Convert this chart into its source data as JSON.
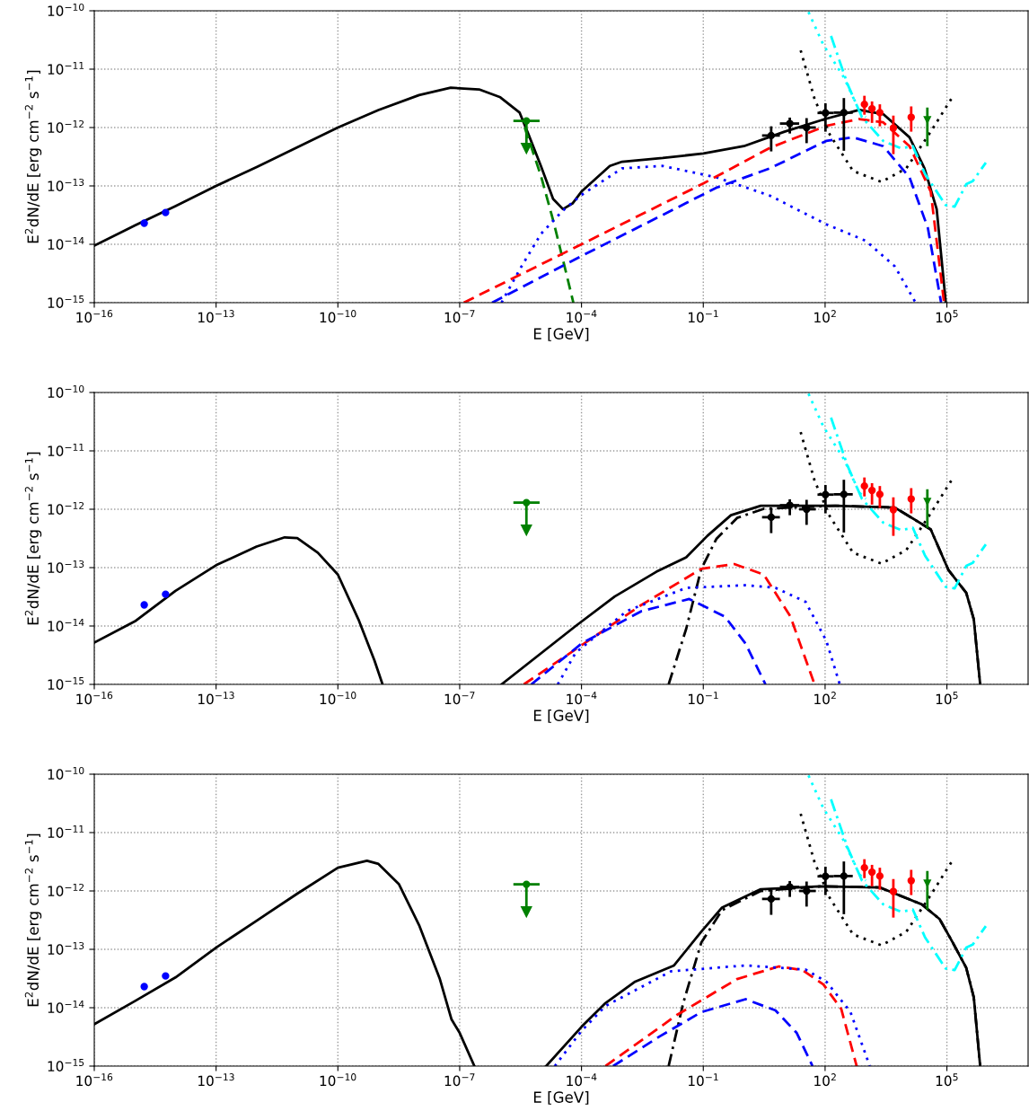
{
  "chart_data": [
    {
      "type": "line",
      "xlabel": "E [GeV]",
      "ylabel": "E$^{2}$dN/dE [erg cm$^{−2}$ s$^{−1}$]",
      "log": "xy",
      "grid": true,
      "xlim": [
        1e-16,
        10000000.0
      ],
      "ylim": [
        1e-15,
        1e-10
      ],
      "xticks": [
        {
          "value": 1e-16,
          "label": "10$^{−16}$"
        },
        {
          "value": 1e-13,
          "label": "10$^{−13}$"
        },
        {
          "value": 1e-10,
          "label": "10$^{−10}$"
        },
        {
          "value": 1e-07,
          "label": "10$^{−7}$"
        },
        {
          "value": 0.0001,
          "label": "10$^{−4}$"
        },
        {
          "value": 0.1,
          "label": "10$^{−1}$"
        },
        {
          "value": 100.0,
          "label": "10$^{2}$"
        },
        {
          "value": 100000.0,
          "label": "10$^{5}$"
        }
      ],
      "yticks": [
        {
          "value": 1e-15,
          "label": "10$^{−15}$"
        },
        {
          "value": 1e-14,
          "label": "10$^{−14}$"
        },
        {
          "value": 1e-13,
          "label": "10$^{−13}$"
        },
        {
          "value": 1e-12,
          "label": "10$^{−12}$"
        },
        {
          "value": 1e-11,
          "label": "10$^{−11}$"
        },
        {
          "value": 1e-10,
          "label": "10$^{−10}$"
        }
      ],
      "series": [
        {
          "type": "line",
          "color": "#000000",
          "line_style": "solid",
          "x": [
            1e-16,
            1e-15,
            1e-14,
            1e-13,
            1e-12,
            1e-11,
            1e-10,
            1e-09,
            1e-08,
            6e-08,
            3e-07,
            1e-06,
            3e-06,
            5e-06,
            1e-05,
            2e-05,
            3.5e-05,
            6e-05,
            0.0001,
            0.0005,
            0.001,
            0.01,
            0.1,
            1,
            10,
            100,
            690,
            2700,
            12000.0,
            28000.0,
            56000.0,
            94000.0
          ],
          "values": [
            9.5e-15,
            2.1e-14,
            4.5e-14,
            1e-13,
            2.1e-13,
            4.6e-13,
            1e-12,
            2e-12,
            3.6e-12,
            4.8e-12,
            4.5e-12,
            3.3e-12,
            1.8e-12,
            7.5e-13,
            2.2e-13,
            6e-14,
            4e-14,
            5e-14,
            8e-14,
            2.2e-13,
            2.6e-13,
            3e-13,
            3.6e-13,
            4.8e-13,
            8.5e-13,
            1.4e-12,
            2e-12,
            1.7e-12,
            6.8e-13,
            2e-13,
            4e-14,
            1e-15
          ]
        },
        {
          "type": "line",
          "color": "#008000",
          "line_style": "dashed",
          "x": [
            4e-06,
            1e-05,
            2e-05,
            4e-05,
            6.3e-05
          ],
          "values": [
            1e-12,
            1.5e-13,
            2.6e-14,
            3.7e-15,
            1e-15
          ]
        },
        {
          "type": "line",
          "color": "#0000ff",
          "line_style": "dotted",
          "x": [
            1.07e-06,
            3e-06,
            1e-05,
            3.5e-05,
            0.0001,
            0.001,
            0.01,
            0.21,
            4.4,
            107,
            1000,
            5200,
            17000
          ],
          "values": [
            1e-15,
            3.7e-15,
            1.5e-14,
            3.8e-14,
            7e-14,
            2e-13,
            2.2e-13,
            1.4e-13,
            6.8e-14,
            2.2e-14,
            1.15e-14,
            4.2e-15,
            1e-15
          ]
        },
        {
          "type": "line",
          "color": "#ff0000",
          "line_style": "dashed",
          "x": [
            1.26e-07,
            0.0001,
            0.1,
            4.4,
            107,
            690,
            2700,
            12000.0,
            40000.0,
            85000.0
          ],
          "values": [
            1e-15,
            1e-14,
            1.1e-13,
            4.5e-13,
            1.07e-12,
            1.4e-12,
            1.23e-12,
            4.8e-13,
            8e-14,
            1e-15
          ]
        },
        {
          "type": "line",
          "color": "#0000ff",
          "line_style": "dashed",
          "x": [
            6.3e-07,
            0.0001,
            0.21,
            4.4,
            107,
            490,
            2700,
            12000.0,
            34000.0,
            72000.0
          ],
          "values": [
            1e-15,
            6.3e-15,
            9.3e-14,
            2e-13,
            5.9e-13,
            6.8e-13,
            4.8e-13,
            1.4e-13,
            1.9e-14,
            1e-15
          ]
        },
        {
          "type": "line",
          "color": "#000000",
          "line_style": "dotted",
          "x": [
            25,
            55,
            130,
            490,
            2450,
            10000.0,
            40000.0,
            140000.0
          ],
          "values": [
            2.1e-11,
            3.1e-12,
            7.6e-13,
            1.8e-13,
            1.17e-13,
            2e-13,
            8.5e-13,
            3.4e-12
          ]
        },
        {
          "type": "line",
          "color": "#00ffff",
          "line_style": "dotted",
          "x": [
            39,
            91,
            295,
            690,
            1000
          ],
          "values": [
            9.5e-11,
            2.6e-11,
            7.1e-12,
            1.95e-12,
            1.5e-12
          ]
        },
        {
          "type": "line",
          "color": "#00ffff",
          "line_style": "dashdot",
          "x": [
            140,
            355,
            810,
            2700,
            7400,
            14500.0,
            29000.0,
            93000.0,
            155000.0,
            300000.0,
            430000.0,
            910000.0
          ],
          "values": [
            3.7e-11,
            5.6e-12,
            1.5e-12,
            5.9e-13,
            4.4e-13,
            4.8e-13,
            1.6e-13,
            4.7e-14,
            4.4e-14,
            1.07e-13,
            1.2e-13,
            2.5e-13
          ]
        },
        {
          "type": "scatter",
          "color": "#0000ff",
          "marker": "circle",
          "x": [
            1.7e-15,
            5.7e-15
          ],
          "values": [
            2.3e-14,
            3.5e-14
          ],
          "errors": [
            null,
            [
              3.2e-14,
              3.9e-14
            ]
          ]
        },
        {
          "type": "scatter",
          "color": "#008000",
          "marker": "circle",
          "x": [
            4.4e-06
          ],
          "values": [
            1.3e-12
          ],
          "xerrors": [
            [
              2.1e-06,
              9.3e-06
            ]
          ],
          "errors": [
            [
              4.4e-13,
              1.3e-12
            ]
          ]
        },
        {
          "type": "scatter",
          "color": "#000000",
          "marker": "circle",
          "x": [
            4.7,
            13.5,
            35,
            102,
            290
          ],
          "values": [
            7.3e-13,
            1.17e-12,
            1e-12,
            1.78e-12,
            1.8e-12
          ],
          "errors": [
            [
              3.9e-13,
              1.05e-12
            ],
            [
              7.9e-13,
              1.48e-12
            ],
            [
              5.4e-13,
              1.45e-12
            ],
            [
              8.5e-13,
              2.6e-12
            ],
            [
              4e-13,
              3.2e-12
            ]
          ],
          "xerrors": [
            [
              2.8,
              7.7
            ],
            [
              7.7,
              23
            ],
            [
              23,
              59
            ],
            [
              65,
              162
            ],
            [
              162,
              480
            ]
          ]
        },
        {
          "type": "scatter",
          "color": "#ff0000",
          "marker": "circle",
          "x": [
            930,
            1430,
            2230,
            4800,
            13200
          ],
          "values": [
            2.5e-12,
            2.1e-12,
            1.8e-12,
            9.8e-13,
            1.5e-12
          ],
          "errors": [
            [
              1.66e-12,
              3.5e-12
            ],
            [
              1.2e-12,
              2.8e-12
            ],
            [
              1.05e-12,
              2.5e-12
            ],
            [
              3.5e-13,
              1.6e-12
            ],
            [
              8.5e-13,
              2.3e-12
            ]
          ]
        },
        {
          "type": "scatter",
          "color": "#008000",
          "marker": "triangle",
          "x": [
            33000
          ],
          "values": [
            1.35e-12
          ],
          "errors": [
            [
              4.8e-13,
              2.2e-12
            ]
          ]
        }
      ]
    },
    {
      "type": "line",
      "xlabel": "E [GeV]",
      "ylabel": "E$^{2}$dN/dE [erg cm$^{−2}$ s$^{−1}$]",
      "log": "xy",
      "grid": true,
      "xlim": [
        1e-16,
        10000000.0
      ],
      "ylim": [
        1e-15,
        1e-10
      ],
      "xticks": [
        {
          "value": 1e-16,
          "label": "10$^{−16}$"
        },
        {
          "value": 1e-13,
          "label": "10$^{−13}$"
        },
        {
          "value": 1e-10,
          "label": "10$^{−10}$"
        },
        {
          "value": 1e-07,
          "label": "10$^{−7}$"
        },
        {
          "value": 0.0001,
          "label": "10$^{−4}$"
        },
        {
          "value": 0.1,
          "label": "10$^{−1}$"
        },
        {
          "value": 100.0,
          "label": "10$^{2}$"
        },
        {
          "value": 100000.0,
          "label": "10$^{5}$"
        }
      ],
      "yticks": [
        {
          "value": 1e-15,
          "label": "10$^{−15}$"
        },
        {
          "value": 1e-14,
          "label": "10$^{−14}$"
        },
        {
          "value": 1e-13,
          "label": "10$^{−13}$"
        },
        {
          "value": 1e-12,
          "label": "10$^{−12}$"
        },
        {
          "value": 1e-11,
          "label": "10$^{−11}$"
        },
        {
          "value": 1e-10,
          "label": "10$^{−10}$"
        }
      ],
      "series": [
        {
          "type": "line",
          "color": "#000000",
          "line_style": "solid",
          "x": [
            1e-16,
            1e-15,
            1e-14,
            1e-13,
            1e-12,
            4.9e-12,
            1e-11,
            3.2e-11,
            1e-10,
            3.2e-10,
            7.9e-10,
            1.26e-09
          ],
          "values": [
            5.2e-15,
            1.2e-14,
            4e-14,
            1.1e-13,
            2.3e-13,
            3.3e-13,
            3.2e-13,
            1.8e-13,
            7.6e-14,
            1.3e-14,
            2.6e-15,
            1e-15
          ]
        },
        {
          "type": "line",
          "color": "#000000",
          "line_style": "solid",
          "x": [
            1.07e-06,
            7.2e-05,
            0.00066,
            0.007,
            0.038,
            0.126,
            0.48,
            2.6,
            180,
            5200,
            40000.0,
            110000.0,
            300000.0,
            460000.0,
            660000.0
          ],
          "values": [
            1e-15,
            1e-14,
            3.2e-14,
            8.5e-14,
            1.5e-13,
            3.5e-13,
            7.9e-13,
            1.15e-12,
            1.15e-12,
            1.07e-12,
            4.5e-13,
            9e-14,
            3.7e-14,
            1.3e-14,
            1e-15
          ]
        },
        {
          "type": "line",
          "color": "#000000",
          "line_style": "dashdot",
          "x": [
            0.014,
            0.038,
            0.089,
            0.21,
            0.68,
            3.1,
            180,
            5200,
            40000.0,
            110000.0,
            300000.0,
            460000.0,
            660000.0
          ],
          "values": [
            1e-15,
            9e-15,
            9.5e-14,
            3.1e-13,
            7.1e-13,
            1.02e-12,
            1.15e-12,
            1.07e-12,
            4.5e-13,
            9e-14,
            3.7e-14,
            1.3e-14,
            1e-15
          ]
        },
        {
          "type": "line",
          "color": "#ff0000",
          "line_style": "dashed",
          "x": [
            3.8e-06,
            7.2e-05,
            0.003,
            0.089,
            0.58,
            3.1,
            14,
            55
          ],
          "values": [
            1e-15,
            4e-15,
            2.3e-14,
            9.5e-14,
            1.15e-13,
            7.6e-14,
            1.45e-14,
            1e-15
          ]
        },
        {
          "type": "line",
          "color": "#0000ff",
          "line_style": "dashed",
          "x": [
            5.8e-06,
            0.0001,
            0.003,
            0.045,
            0.34,
            1.1,
            3.4
          ],
          "values": [
            1e-15,
            5e-15,
            1.8e-14,
            2.9e-14,
            1.45e-14,
            5e-15,
            1e-15
          ]
        },
        {
          "type": "line",
          "color": "#0000ff",
          "line_style": "dotted",
          "x": [
            2.6e-05,
            7.2e-05,
            0.0013,
            0.038,
            1.1,
            6,
            33,
            107,
            230
          ],
          "values": [
            1e-15,
            3.5e-15,
            1.8e-14,
            4.5e-14,
            5e-14,
            4.5e-14,
            2.6e-14,
            5.6e-15,
            1e-15
          ]
        },
        {
          "type": "line",
          "color": "#000000",
          "line_style": "dotted",
          "x": [
            25,
            55,
            130,
            490,
            2450,
            10000.0,
            40000.0,
            140000.0
          ],
          "values": [
            2.1e-11,
            3.1e-12,
            7.6e-13,
            1.8e-13,
            1.17e-13,
            2e-13,
            8.5e-13,
            3.4e-12
          ]
        },
        {
          "type": "line",
          "color": "#00ffff",
          "line_style": "dotted",
          "x": [
            39,
            91,
            295,
            690,
            1000
          ],
          "values": [
            9.5e-11,
            2.6e-11,
            7.1e-12,
            1.95e-12,
            1.5e-12
          ]
        },
        {
          "type": "line",
          "color": "#00ffff",
          "line_style": "dashdot",
          "x": [
            140,
            355,
            810,
            2700,
            7400,
            14500.0,
            29000.0,
            93000.0,
            155000.0,
            300000.0,
            430000.0,
            910000.0
          ],
          "values": [
            3.7e-11,
            5.6e-12,
            1.5e-12,
            5.9e-13,
            4.4e-13,
            4.8e-13,
            1.6e-13,
            4.7e-14,
            4.4e-14,
            1.07e-13,
            1.2e-13,
            2.5e-13
          ]
        },
        {
          "type": "scatter",
          "color": "#0000ff",
          "marker": "circle",
          "x": [
            1.7e-15,
            5.7e-15
          ],
          "values": [
            2.3e-14,
            3.5e-14
          ],
          "errors": [
            null,
            [
              3.2e-14,
              3.9e-14
            ]
          ]
        },
        {
          "type": "scatter",
          "color": "#008000",
          "marker": "circle",
          "x": [
            4.4e-06
          ],
          "values": [
            1.3e-12
          ],
          "xerrors": [
            [
              2.1e-06,
              9.3e-06
            ]
          ],
          "errors": [
            [
              4.4e-13,
              1.3e-12
            ]
          ]
        },
        {
          "type": "scatter",
          "color": "#000000",
          "marker": "circle",
          "x": [
            4.7,
            13.5,
            35,
            102,
            290
          ],
          "values": [
            7.3e-13,
            1.17e-12,
            1e-12,
            1.78e-12,
            1.8e-12
          ],
          "errors": [
            [
              3.9e-13,
              1.05e-12
            ],
            [
              7.9e-13,
              1.48e-12
            ],
            [
              5.4e-13,
              1.45e-12
            ],
            [
              8.5e-13,
              2.6e-12
            ],
            [
              4e-13,
              3.2e-12
            ]
          ],
          "xerrors": [
            [
              2.8,
              7.7
            ],
            [
              7.7,
              23
            ],
            [
              23,
              59
            ],
            [
              65,
              162
            ],
            [
              162,
              480
            ]
          ]
        },
        {
          "type": "scatter",
          "color": "#ff0000",
          "marker": "circle",
          "x": [
            930,
            1430,
            2230,
            4800,
            13200
          ],
          "values": [
            2.5e-12,
            2.1e-12,
            1.8e-12,
            9.8e-13,
            1.5e-12
          ],
          "errors": [
            [
              1.66e-12,
              3.5e-12
            ],
            [
              1.2e-12,
              2.8e-12
            ],
            [
              1.05e-12,
              2.5e-12
            ],
            [
              3.5e-13,
              1.6e-12
            ],
            [
              8.5e-13,
              2.3e-12
            ]
          ]
        },
        {
          "type": "scatter",
          "color": "#008000",
          "marker": "triangle",
          "x": [
            33000
          ],
          "values": [
            1.35e-12
          ],
          "errors": [
            [
              4.8e-13,
              2.2e-12
            ]
          ]
        }
      ]
    },
    {
      "type": "line",
      "xlabel": "E [GeV]",
      "ylabel": "E$^{2}$dN/dE [erg cm$^{−2}$ s$^{−1}$]",
      "log": "xy",
      "grid": true,
      "xlim": [
        1e-16,
        10000000.0
      ],
      "ylim": [
        1e-15,
        1e-10
      ],
      "xticks": [
        {
          "value": 1e-16,
          "label": "10$^{−16}$"
        },
        {
          "value": 1e-13,
          "label": "10$^{−13}$"
        },
        {
          "value": 1e-10,
          "label": "10$^{−10}$"
        },
        {
          "value": 1e-07,
          "label": "10$^{−7}$"
        },
        {
          "value": 0.0001,
          "label": "10$^{−4}$"
        },
        {
          "value": 0.1,
          "label": "10$^{−1}$"
        },
        {
          "value": 100.0,
          "label": "10$^{2}$"
        },
        {
          "value": 100000.0,
          "label": "10$^{5}$"
        }
      ],
      "yticks": [
        {
          "value": 1e-15,
          "label": "10$^{−15}$"
        },
        {
          "value": 1e-14,
          "label": "10$^{−14}$"
        },
        {
          "value": 1e-13,
          "label": "10$^{−13}$"
        },
        {
          "value": 1e-12,
          "label": "10$^{−12}$"
        },
        {
          "value": 1e-11,
          "label": "10$^{−11}$"
        },
        {
          "value": 1e-10,
          "label": "10$^{−10}$"
        }
      ],
      "series": [
        {
          "type": "line",
          "color": "#000000",
          "line_style": "solid",
          "x": [
            1e-16,
            1e-15,
            1e-14,
            1e-13,
            1e-12,
            1e-11,
            1e-10,
            5.2e-10,
            1e-09,
            3.2e-09,
            1e-08,
            3.2e-08,
            6.3e-08,
            1e-07,
            2.3e-07
          ],
          "values": [
            5.2e-15,
            1.3e-14,
            3.3e-14,
            1.07e-13,
            3.1e-13,
            9e-13,
            2.5e-12,
            3.3e-12,
            2.9e-12,
            1.3e-12,
            2.6e-13,
            3.2e-14,
            6.3e-15,
            3.7e-15,
            1e-15
          ]
        },
        {
          "type": "line",
          "color": "#000000",
          "line_style": "solid",
          "x": [
            1.35e-05,
            0.0001,
            0.00039,
            0.0021,
            0.019,
            0.089,
            0.29,
            2.6,
            76,
            2200,
            24000.0,
            66000.0,
            140000.0,
            300000.0,
            460000.0,
            660000.0
          ],
          "values": [
            1e-15,
            4.7e-15,
            1.2e-14,
            2.8e-14,
            5.3e-14,
            2e-13,
            5.2e-13,
            1.07e-12,
            1.2e-12,
            1.15e-12,
            5.9e-13,
            3.3e-13,
            1.3e-13,
            4.8e-14,
            1.5e-14,
            1e-15
          ]
        },
        {
          "type": "line",
          "color": "#000000",
          "line_style": "dashdot",
          "x": [
            0.014,
            0.032,
            0.089,
            0.29,
            2.6,
            76,
            2200,
            24000.0,
            66000.0,
            140000.0,
            300000.0,
            460000.0,
            660000.0
          ],
          "values": [
            1e-15,
            1.2e-14,
            1.3e-13,
            4.7e-13,
            1e-12,
            1.2e-12,
            1.15e-12,
            5.9e-13,
            3.3e-13,
            1.3e-13,
            4.8e-14,
            1.5e-14,
            1e-15
          ]
        },
        {
          "type": "line",
          "color": "#ff0000",
          "line_style": "dashed",
          "x": [
            0.00039,
            0.023,
            0.68,
            7.3,
            28,
            91,
            250,
            600
          ],
          "values": [
            1e-15,
            7.6e-15,
            3.1e-14,
            5.1e-14,
            4.4e-14,
            2.5e-14,
            9.5e-15,
            1e-15
          ]
        },
        {
          "type": "line",
          "color": "#0000ff",
          "line_style": "dashed",
          "x": [
            0.0006,
            0.0083,
            0.089,
            1.1,
            6,
            20,
            49
          ],
          "values": [
            1e-15,
            3.2e-15,
            8.4e-15,
            1.4e-14,
            9e-15,
            3.7e-15,
            1e-15
          ]
        },
        {
          "type": "line",
          "color": "#0000ff",
          "line_style": "dotted",
          "x": [
            2.2e-05,
            0.0001,
            0.00039,
            0.016,
            1.1,
            33,
            107,
            420,
            1260
          ],
          "values": [
            1e-15,
            4e-15,
            1.07e-14,
            4.2e-14,
            5.3e-14,
            4.5e-14,
            2.8e-14,
            8.5e-15,
            1e-15
          ]
        },
        {
          "type": "line",
          "color": "#000000",
          "line_style": "dotted",
          "x": [
            25,
            55,
            130,
            490,
            2450,
            10000.0,
            40000.0,
            140000.0
          ],
          "values": [
            2.1e-11,
            3.1e-12,
            7.6e-13,
            1.8e-13,
            1.17e-13,
            2e-13,
            8.5e-13,
            3.4e-12
          ]
        },
        {
          "type": "line",
          "color": "#00ffff",
          "line_style": "dotted",
          "x": [
            39,
            91,
            295,
            690,
            1000
          ],
          "values": [
            9.5e-11,
            2.6e-11,
            7.1e-12,
            1.95e-12,
            1.5e-12
          ]
        },
        {
          "type": "line",
          "color": "#00ffff",
          "line_style": "dashdot",
          "x": [
            140,
            355,
            810,
            2700,
            7400,
            14500.0,
            29000.0,
            93000.0,
            155000.0,
            300000.0,
            430000.0,
            910000.0
          ],
          "values": [
            3.7e-11,
            5.6e-12,
            1.5e-12,
            5.9e-13,
            4.4e-13,
            4.8e-13,
            1.6e-13,
            4.7e-14,
            4.4e-14,
            1.07e-13,
            1.2e-13,
            2.5e-13
          ]
        },
        {
          "type": "scatter",
          "color": "#0000ff",
          "marker": "circle",
          "x": [
            1.7e-15,
            5.7e-15
          ],
          "values": [
            2.3e-14,
            3.5e-14
          ],
          "errors": [
            null,
            [
              3.2e-14,
              3.9e-14
            ]
          ]
        },
        {
          "type": "scatter",
          "color": "#008000",
          "marker": "circle",
          "x": [
            4.4e-06
          ],
          "values": [
            1.3e-12
          ],
          "xerrors": [
            [
              2.1e-06,
              9.3e-06
            ]
          ],
          "errors": [
            [
              4.4e-13,
              1.3e-12
            ]
          ]
        },
        {
          "type": "scatter",
          "color": "#000000",
          "marker": "circle",
          "x": [
            4.7,
            13.5,
            35,
            102,
            290
          ],
          "values": [
            7.3e-13,
            1.17e-12,
            1e-12,
            1.78e-12,
            1.8e-12
          ],
          "errors": [
            [
              3.9e-13,
              1.05e-12
            ],
            [
              7.9e-13,
              1.48e-12
            ],
            [
              5.4e-13,
              1.45e-12
            ],
            [
              8.5e-13,
              2.6e-12
            ],
            [
              4e-13,
              3.2e-12
            ]
          ],
          "xerrors": [
            [
              2.8,
              7.7
            ],
            [
              7.7,
              23
            ],
            [
              23,
              59
            ],
            [
              65,
              162
            ],
            [
              162,
              480
            ]
          ]
        },
        {
          "type": "scatter",
          "color": "#ff0000",
          "marker": "circle",
          "x": [
            930,
            1430,
            2230,
            4800,
            13200
          ],
          "values": [
            2.5e-12,
            2.1e-12,
            1.8e-12,
            9.8e-13,
            1.5e-12
          ],
          "errors": [
            [
              1.66e-12,
              3.5e-12
            ],
            [
              1.2e-12,
              2.8e-12
            ],
            [
              1.05e-12,
              2.5e-12
            ],
            [
              3.5e-13,
              1.6e-12
            ],
            [
              8.5e-13,
              2.3e-12
            ]
          ]
        },
        {
          "type": "scatter",
          "color": "#008000",
          "marker": "triangle",
          "x": [
            33000
          ],
          "values": [
            1.35e-12
          ],
          "errors": [
            [
              4.8e-13,
              2.2e-12
            ]
          ]
        }
      ]
    }
  ]
}
